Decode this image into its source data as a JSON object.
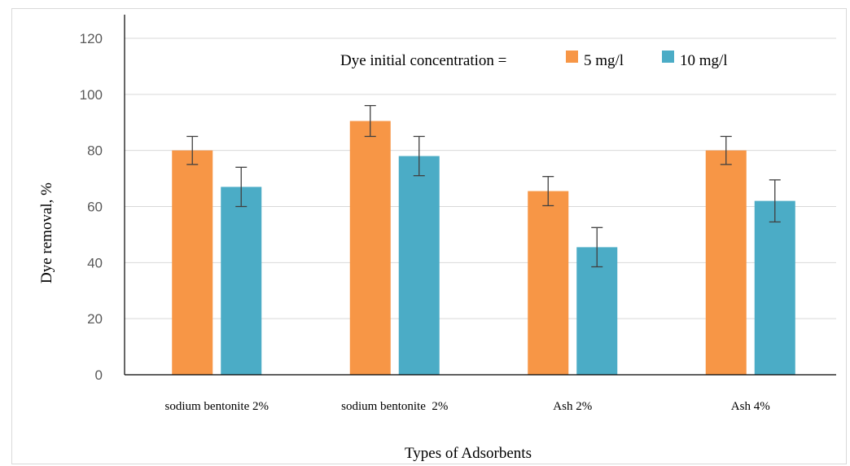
{
  "chart_data": {
    "type": "bar",
    "title": "",
    "xlabel": "Types of Adsorbents",
    "ylabel": "Dye removal, %",
    "ylim": [
      0,
      120
    ],
    "yticks": [
      "0",
      "20",
      "40",
      "60",
      "80",
      "100",
      "120"
    ],
    "grid": true,
    "categories": [
      "sodium bentonite 2%",
      "sodium bentonite  2%",
      "Ash 2%",
      "Ash 4%"
    ],
    "legend": {
      "title": "Dye initial concentration =",
      "placement": "top-right"
    },
    "series": [
      {
        "name": "5 mg/l",
        "color": "#F79646",
        "values": [
          80,
          90.5,
          65.5,
          80
        ],
        "errors": [
          5,
          5.5,
          5.2,
          5
        ]
      },
      {
        "name": "10 mg/l",
        "color": "#4BACC6",
        "values": [
          67,
          78,
          45.5,
          62
        ],
        "errors": [
          7,
          7,
          7,
          7.5
        ]
      }
    ]
  }
}
